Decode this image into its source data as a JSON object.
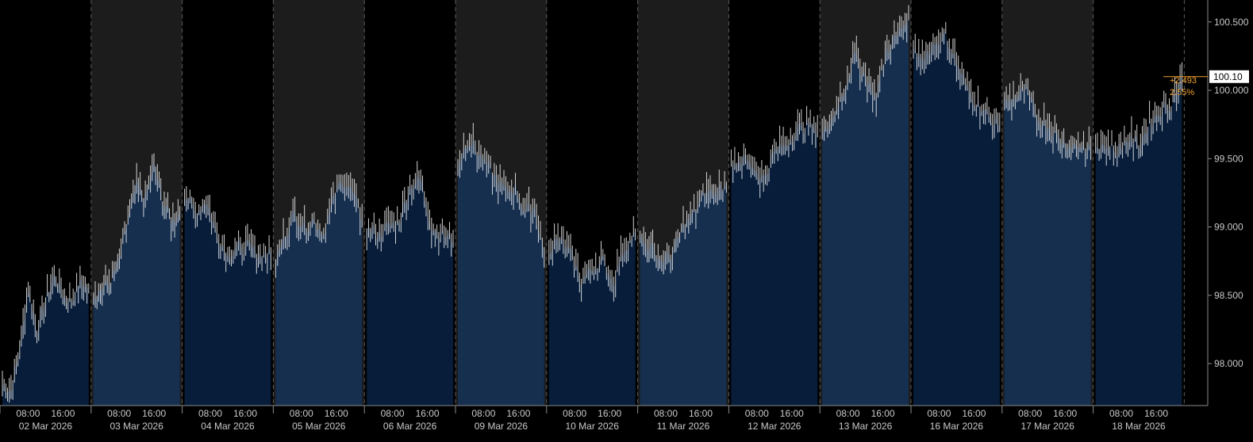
{
  "chart_data": {
    "type": "ohlc",
    "title": "",
    "xlabel": "",
    "ylabel": "",
    "ylim": [
      97.7,
      100.6
    ],
    "y_ticks": [
      "98.000",
      "98.500",
      "99.000",
      "99.500",
      "100.000",
      "100.500"
    ],
    "last_price_label": "100.10",
    "last_price": 100.1,
    "change_abs": "+2.493",
    "change_pct": "2.55%",
    "x_time_labels": [
      "08:00",
      "16:00"
    ],
    "days": [
      {
        "date": "02 Mar 2026",
        "points": [
          97.85,
          97.8,
          98.1,
          98.55,
          98.25,
          98.45,
          98.65,
          98.5,
          98.45,
          98.6,
          98.55
        ]
      },
      {
        "date": "03 Mar 2026",
        "points": [
          98.5,
          98.55,
          98.6,
          98.75,
          99.05,
          99.3,
          99.2,
          99.45,
          99.2,
          99.05,
          99.1
        ]
      },
      {
        "date": "04 Mar 2026",
        "points": [
          99.25,
          99.1,
          99.2,
          98.95,
          98.8,
          98.85,
          98.85,
          98.8,
          98.8
        ]
      },
      {
        "date": "05 Mar 2026",
        "points": [
          98.75,
          98.95,
          99.1,
          99.0,
          99.05,
          98.95,
          99.2,
          99.35,
          99.25,
          99.05
        ]
      },
      {
        "date": "06 Mar 2026",
        "points": [
          99.0,
          98.95,
          99.0,
          99.05,
          99.3,
          99.35,
          99.0,
          98.95,
          98.9
        ]
      },
      {
        "date": "09 Mar 2026",
        "points": [
          99.45,
          99.65,
          99.55,
          99.45,
          99.35,
          99.25,
          99.3,
          99.1,
          99.15,
          98.8
        ]
      },
      {
        "date": "10 Mar 2026",
        "points": [
          98.85,
          98.9,
          98.8,
          98.6,
          98.7,
          98.75,
          98.6,
          98.85,
          98.95
        ]
      },
      {
        "date": "11 Mar 2026",
        "points": [
          98.9,
          98.85,
          98.75,
          98.8,
          99.0,
          99.1,
          99.25,
          99.25,
          99.3
        ]
      },
      {
        "date": "12 Mar 2026",
        "points": [
          99.45,
          99.5,
          99.45,
          99.35,
          99.55,
          99.6,
          99.7,
          99.75,
          99.7
        ]
      },
      {
        "date": "13 Mar 2026",
        "points": [
          99.65,
          99.8,
          100.0,
          100.25,
          100.1,
          99.95,
          100.3,
          100.4,
          100.55
        ]
      },
      {
        "date": "16 Mar 2026",
        "points": [
          100.25,
          100.25,
          100.35,
          100.4,
          100.2,
          100.0,
          99.9,
          99.8,
          99.75
        ]
      },
      {
        "date": "17 Mar 2026",
        "points": [
          99.9,
          99.95,
          100.0,
          99.8,
          99.75,
          99.65,
          99.6,
          99.6,
          99.55
        ]
      },
      {
        "date": "18 Mar 2026",
        "points": [
          99.6,
          99.6,
          99.55,
          99.65,
          99.6,
          99.75,
          99.85,
          99.9,
          100.1
        ]
      }
    ],
    "colors": {
      "background": "#000000",
      "band_shaded": "#1c1c1c",
      "area_dark": "#071d3a",
      "area_light": "#162f4f",
      "bar": "#e8e8e8",
      "gridline": "#5a5a5a",
      "change": "#f0a030",
      "price_box_bg": "#ffffff",
      "price_box_text": "#000000",
      "axis_text": "#c8c8c8"
    }
  }
}
